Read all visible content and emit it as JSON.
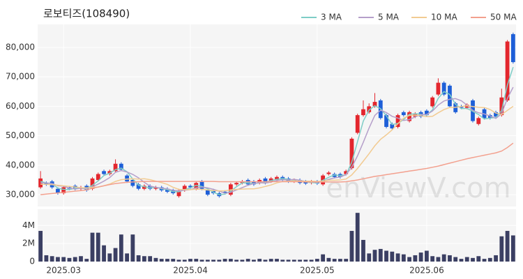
{
  "chart_data": {
    "type": "candlestick",
    "title": "로보티즈(108490)",
    "watermark": "enViewV.com",
    "categories": [
      null,
      null,
      null,
      null,
      "2025.03",
      null,
      null,
      null,
      null,
      null,
      null,
      null,
      null,
      null,
      null,
      null,
      null,
      null,
      null,
      null,
      null,
      null,
      null,
      null,
      null,
      null,
      "2025.04",
      null,
      null,
      null,
      null,
      null,
      null,
      null,
      null,
      null,
      null,
      null,
      null,
      null,
      null,
      null,
      null,
      null,
      null,
      null,
      null,
      null,
      "2025.05",
      null,
      null,
      null,
      null,
      null,
      null,
      null,
      null,
      null,
      null,
      null,
      null,
      null,
      null,
      null,
      null,
      null,
      null,
      "2025.06",
      null,
      null,
      null,
      null,
      null,
      null,
      null,
      null,
      null,
      null,
      null,
      null,
      null,
      null,
      null
    ],
    "open": [
      32500,
      34000,
      34500,
      32000,
      30500,
      32500,
      33000,
      32000,
      33000,
      32000,
      35000,
      38000,
      37000,
      38000,
      40500,
      36500,
      35000,
      33500,
      32000,
      33000,
      32000,
      32500,
      32000,
      31500,
      29500,
      31500,
      33000,
      32000,
      34500,
      31500,
      31500,
      30500,
      31000,
      30000,
      33500,
      34000,
      35000,
      34500,
      34000,
      35500,
      34500,
      35000,
      36000,
      35500,
      34500,
      35000,
      34500,
      34000,
      34500,
      33500,
      37000,
      37000,
      37000,
      37000,
      39000,
      51000,
      57000,
      58000,
      60000,
      62000,
      57000,
      54000,
      53000,
      58000,
      55000,
      56500,
      58000,
      58500,
      60000,
      64000,
      68000,
      67000,
      61000,
      60000,
      59500,
      62000,
      54000,
      59000,
      57000,
      58000,
      57000,
      62000,
      84500
    ],
    "high": [
      38000,
      34500,
      35000,
      32500,
      33000,
      33000,
      33500,
      33000,
      33500,
      36000,
      37500,
      38500,
      38500,
      42000,
      41000,
      37000,
      35500,
      34000,
      33500,
      33500,
      33000,
      33000,
      32500,
      32000,
      32000,
      33500,
      33500,
      34500,
      35000,
      32000,
      32000,
      31000,
      31500,
      34000,
      34500,
      35000,
      35500,
      35000,
      35500,
      36000,
      36000,
      36500,
      36500,
      36000,
      35500,
      35500,
      35000,
      35000,
      35000,
      37000,
      38000,
      37500,
      37500,
      38500,
      49500,
      57500,
      62000,
      61000,
      64500,
      62500,
      57500,
      54500,
      57500,
      58500,
      58500,
      58000,
      58500,
      59000,
      63500,
      69500,
      68500,
      67500,
      61500,
      60500,
      61000,
      62500,
      56500,
      59500,
      57500,
      58500,
      66000,
      82500,
      85000
    ],
    "low": [
      32000,
      33000,
      32000,
      30000,
      30000,
      31500,
      31500,
      31500,
      31000,
      31500,
      34500,
      36500,
      36500,
      37500,
      38000,
      34000,
      32500,
      31500,
      31500,
      31500,
      31500,
      31000,
      30500,
      30000,
      29000,
      31000,
      32000,
      31500,
      31500,
      29500,
      30000,
      29000,
      30000,
      29500,
      33000,
      33500,
      33000,
      33000,
      33500,
      33500,
      34000,
      34500,
      34500,
      34000,
      34000,
      33500,
      33300,
      33500,
      33300,
      33000,
      36500,
      35500,
      35500,
      36500,
      38500,
      50500,
      56500,
      57500,
      59500,
      55500,
      52500,
      52000,
      52500,
      56500,
      54500,
      56000,
      56000,
      56500,
      59500,
      63500,
      63500,
      59500,
      57500,
      59000,
      59000,
      54500,
      53500,
      55500,
      55500,
      56000,
      56500,
      61500,
      74500
    ],
    "close": [
      35500,
      33500,
      32500,
      30500,
      32500,
      32000,
      32000,
      32500,
      31500,
      35500,
      37000,
      37000,
      38000,
      40500,
      38500,
      34500,
      33000,
      32000,
      33000,
      32000,
      32500,
      31500,
      31000,
      30500,
      31500,
      33000,
      32500,
      34000,
      32000,
      30000,
      30500,
      29500,
      30500,
      33500,
      34000,
      34500,
      33500,
      33500,
      35000,
      34000,
      35500,
      36000,
      35000,
      34500,
      35000,
      34000,
      33800,
      34500,
      33800,
      36500,
      37500,
      36000,
      36000,
      38000,
      49000,
      57000,
      59000,
      60000,
      61500,
      56000,
      53000,
      52500,
      57000,
      57000,
      58000,
      57500,
      56500,
      57000,
      63000,
      68000,
      64000,
      60000,
      58000,
      59500,
      60500,
      55000,
      56000,
      56000,
      56000,
      56500,
      63000,
      82000,
      75000
    ],
    "up_color": "#e3262d",
    "down_color": "#1e5fd8",
    "ylim": [
      26000,
      87800
    ],
    "yticks": [
      {
        "value": 30000,
        "label": "30,000"
      },
      {
        "value": 40000,
        "label": "40,000"
      },
      {
        "value": 50000,
        "label": "50,000"
      },
      {
        "value": 60000,
        "label": "60,000"
      },
      {
        "value": 70000,
        "label": "70,000"
      },
      {
        "value": 80000,
        "label": "80,000"
      }
    ],
    "grid": true,
    "series": [
      {
        "name": "3 MA",
        "color": "#7ecdc6",
        "values": [
          34500,
          34000,
          33800,
          32200,
          31800,
          31700,
          32200,
          32200,
          32000,
          33200,
          34700,
          36500,
          37300,
          38500,
          39000,
          37800,
          35300,
          33200,
          32700,
          32300,
          32500,
          32000,
          31700,
          31000,
          31000,
          31700,
          32300,
          33200,
          32800,
          32000,
          30800,
          30000,
          30200,
          31200,
          32700,
          34000,
          34000,
          33800,
          34000,
          34200,
          34800,
          35200,
          35500,
          35200,
          34800,
          34500,
          34300,
          34100,
          34000,
          34900,
          35900,
          36700,
          36500,
          36700,
          41000,
          48000,
          55000,
          58700,
          60200,
          59200,
          56800,
          53800,
          54200,
          55500,
          57300,
          57500,
          57300,
          57000,
          58800,
          62700,
          65000,
          64000,
          60700,
          59200,
          59300,
          58300,
          57200,
          55700,
          56000,
          56200,
          58500,
          67200,
          73300
        ]
      },
      {
        "name": "5 MA",
        "color": "#b59fca",
        "values": [
          34000,
          34000,
          33800,
          33000,
          32900,
          32200,
          31900,
          32200,
          32100,
          32700,
          33600,
          34600,
          35800,
          37600,
          38200,
          37700,
          36900,
          35700,
          34200,
          32900,
          32500,
          32200,
          32000,
          31500,
          31300,
          31500,
          31700,
          32300,
          32600,
          32300,
          31800,
          31200,
          30500,
          30800,
          31600,
          32400,
          33200,
          33800,
          34100,
          33900,
          34300,
          34800,
          35100,
          35000,
          35200,
          34900,
          34500,
          34300,
          34200,
          34500,
          35200,
          35700,
          36000,
          36800,
          39300,
          43200,
          47800,
          52600,
          56900,
          58700,
          57900,
          56600,
          56000,
          55200,
          55500,
          56400,
          57200,
          57200,
          58400,
          60400,
          61800,
          62400,
          62600,
          61900,
          60400,
          58600,
          57800,
          57400,
          56700,
          55900,
          57500,
          62700,
          66500
        ]
      },
      {
        "name": "10 MA",
        "color": "#f2cb92",
        "values": [
          33500,
          33500,
          33400,
          33200,
          33000,
          32800,
          32600,
          32400,
          32300,
          32500,
          32600,
          33000,
          33600,
          34500,
          35100,
          35300,
          35400,
          35300,
          35400,
          35100,
          34600,
          34100,
          33500,
          32500,
          31800,
          31700,
          31700,
          31900,
          31800,
          31600,
          31400,
          31300,
          31300,
          31600,
          31800,
          31900,
          32000,
          32000,
          32300,
          32800,
          33300,
          34000,
          34500,
          34600,
          34700,
          34600,
          34600,
          34600,
          34500,
          34600,
          34900,
          34900,
          35000,
          35300,
          36700,
          38900,
          41400,
          43900,
          46600,
          48800,
          50300,
          52000,
          54100,
          56000,
          56900,
          57000,
          56800,
          56500,
          56600,
          57800,
          58900,
          59600,
          59700,
          59900,
          60200,
          59900,
          59700,
          59600,
          58900,
          57700,
          57200,
          58600,
          60000
        ]
      },
      {
        "name": "50 MA",
        "color": "#f3a08e",
        "values": [
          30000,
          30200,
          30400,
          30600,
          30800,
          31000,
          31200,
          31400,
          31600,
          32200,
          32600,
          33000,
          33400,
          33800,
          34000,
          34200,
          34300,
          34400,
          34500,
          34500,
          34500,
          34500,
          34500,
          34500,
          34500,
          34500,
          34500,
          34500,
          34500,
          34500,
          34500,
          34400,
          34400,
          34400,
          34400,
          34400,
          34400,
          34400,
          34400,
          34400,
          34400,
          34400,
          34400,
          34400,
          34400,
          34400,
          34300,
          34300,
          34300,
          34300,
          34300,
          34300,
          34300,
          34400,
          34700,
          35000,
          35400,
          35800,
          36200,
          36500,
          36800,
          37100,
          37400,
          37700,
          38000,
          38300,
          38600,
          38900,
          39300,
          39700,
          40200,
          40700,
          41200,
          41700,
          42200,
          42600,
          43000,
          43400,
          43800,
          44200,
          44800,
          46000,
          47500
        ]
      }
    ],
    "volume": {
      "color": "#3b3f63",
      "ylim": [
        0,
        5800000
      ],
      "yticks": [
        {
          "value": 0,
          "label": "0"
        },
        {
          "value": 2000000,
          "label": "2M"
        },
        {
          "value": 4000000,
          "label": "4M"
        }
      ],
      "values": [
        3400000,
        700000,
        600000,
        500000,
        500000,
        400000,
        500000,
        600000,
        300000,
        3200000,
        3200000,
        1800000,
        900000,
        1500000,
        3000000,
        900000,
        3000000,
        700000,
        600000,
        600000,
        400000,
        300000,
        300000,
        300000,
        200000,
        200000,
        300000,
        300000,
        200000,
        200000,
        200000,
        200000,
        300000,
        300000,
        200000,
        200000,
        300000,
        200000,
        300000,
        200000,
        300000,
        300000,
        200000,
        200000,
        200000,
        200000,
        200000,
        200000,
        300000,
        800000,
        400000,
        300000,
        300000,
        300000,
        3400000,
        5400000,
        2400000,
        900000,
        1300000,
        1400000,
        1200000,
        1100000,
        900000,
        800000,
        500000,
        700000,
        1000000,
        1200000,
        600000,
        500000,
        800000,
        700000,
        500000,
        300000,
        500000,
        400000,
        600000,
        300000,
        400000,
        700000,
        2800000,
        3400000,
        2900000
      ]
    }
  }
}
